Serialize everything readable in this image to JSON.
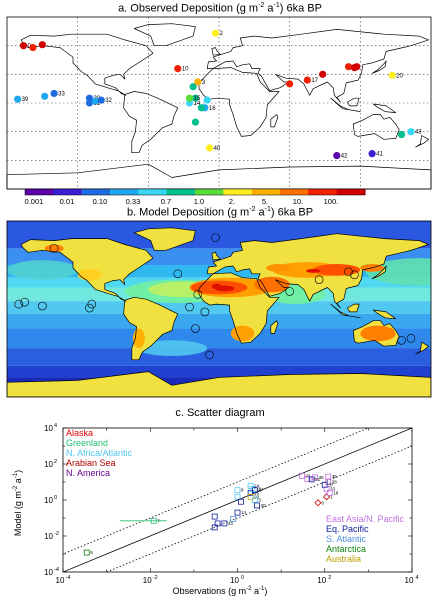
{
  "panel_a": {
    "title_prefix": "a. Observed Deposition (g m",
    "title_exp": "-2",
    "title_mid": " a",
    "title_exp2": "-1",
    "title_suffix": ") 6ka BP",
    "colorbar_labels": [
      "0.001",
      "0.01",
      "0.10",
      "0.33",
      "0.7",
      "1.0",
      "2.",
      "5.",
      "10.",
      "100."
    ],
    "colorbar_colors": [
      "#5a00a8",
      "#3a1fd0",
      "#1e6be0",
      "#1da8f0",
      "#38d8f5",
      "#00c090",
      "#5adc3a",
      "#ffee20",
      "#ffb000",
      "#ff7000",
      "#f02000",
      "#d00000"
    ],
    "site_labels": [
      "0",
      "2",
      "10",
      "20",
      "39",
      "40",
      "41",
      "42",
      "3",
      "14",
      "15",
      "16",
      "17",
      "30",
      "31",
      "32",
      "33",
      "43"
    ]
  },
  "panel_b": {
    "title_prefix": "b. Model Deposition (g m",
    "title_exp": "-2",
    "title_mid": " a",
    "title_exp2": "-1",
    "title_suffix": ") 6ka BP"
  },
  "panel_c": {
    "title": "c. Scatter diagram",
    "ylabel_prefix": "Model (g m",
    "ylabel_exp": "-2",
    "ylabel_mid": " a",
    "ylabel_exp2": "-1",
    "ylabel_suffix": ")",
    "xlabel_prefix": "Observations (g m",
    "xlabel_exp": "-2",
    "xlabel_mid": " a",
    "xlabel_exp2": "-1",
    "xlabel_suffix": ")",
    "legend_left": [
      {
        "label": "Alaska",
        "color": "#e00000"
      },
      {
        "label": "Greenland",
        "color": "#20c070"
      },
      {
        "label": "N. Africa/Atlantic",
        "color": "#50c8f0"
      },
      {
        "label": "Arabian Sea",
        "color": "#b00000"
      },
      {
        "label": "N. America",
        "color": "#6a0090"
      }
    ],
    "legend_right": [
      {
        "label": "East Asia/N. Pacific",
        "color": "#c070e0"
      },
      {
        "label": "Eq. Pacific",
        "color": "#1020a0"
      },
      {
        "label": "S. Atlantic",
        "color": "#5090e0"
      },
      {
        "label": "Antarctica",
        "color": "#108010"
      },
      {
        "label": "Australia",
        "color": "#c0a000"
      }
    ]
  },
  "chart_data": {
    "type": "scatter",
    "title": "c. Scatter diagram",
    "xlabel": "Observations (g m-2 a-1)",
    "ylabel": "Model (g m-2 a-1)",
    "xscale": "log",
    "yscale": "log",
    "xlim": [
      0.0001,
      10000
    ],
    "ylim": [
      0.0001,
      10000
    ],
    "x_ticks": [
      "10-4",
      "10-2",
      "100",
      "102",
      "104"
    ],
    "y_ticks": [
      "10-4",
      "10-2",
      "100",
      "102",
      "104"
    ],
    "lines": [
      "1:1 solid",
      "10x dotted",
      "0.1x dotted"
    ],
    "grid": false,
    "points": [
      {
        "label": "9",
        "x": 0.00035,
        "y": 0.0012,
        "group": "Antarctica"
      },
      {
        "label": "7",
        "x": 0.012,
        "y": 0.07,
        "group": "Greenland"
      },
      {
        "label": "",
        "x": 0.3,
        "y": 0.12,
        "group": "Eq. Pacific"
      },
      {
        "label": "",
        "x": 0.35,
        "y": 0.05,
        "group": "Eq. Pacific"
      },
      {
        "label": "",
        "x": 0.3,
        "y": 0.03,
        "group": "Eq. Pacific"
      },
      {
        "label": "43",
        "x": 0.5,
        "y": 0.05,
        "group": "Eq. Pacific"
      },
      {
        "label": "",
        "x": 0.8,
        "y": 0.09,
        "group": "S. Atlantic"
      },
      {
        "label": "14",
        "x": 1.0,
        "y": 0.2,
        "group": "Eq. Pacific"
      },
      {
        "label": "8",
        "x": 1.0,
        "y": 3.5,
        "group": "N. Africa/Atlantic"
      },
      {
        "label": "",
        "x": 1.0,
        "y": 1.5,
        "group": "N. Africa/Atlantic"
      },
      {
        "label": "",
        "x": 1.2,
        "y": 0.8,
        "group": "Eq. Pacific"
      },
      {
        "label": "25",
        "x": 2.0,
        "y": 2.5,
        "group": "Eq. Pacific"
      },
      {
        "label": "20",
        "x": 2.0,
        "y": 1.5,
        "group": "Australia"
      },
      {
        "label": "16",
        "x": 2.2,
        "y": 4.0,
        "group": "N. Africa/Atlantic"
      },
      {
        "label": "24",
        "x": 2.0,
        "y": 6.0,
        "group": "N. Africa/Atlantic"
      },
      {
        "label": "27",
        "x": 2.5,
        "y": 3.5,
        "group": "Eq. Pacific"
      },
      {
        "label": "3",
        "x": 2.5,
        "y": 1.0,
        "group": "N. Africa/Atlantic"
      },
      {
        "label": "40",
        "x": 2.8,
        "y": 0.5,
        "group": "Eq. Pacific"
      },
      {
        "label": "34",
        "x": 30,
        "y": 22,
        "group": "East Asia/N. Pacific"
      },
      {
        "label": "32",
        "x": 40,
        "y": 15,
        "group": "East Asia/N. Pacific"
      },
      {
        "label": "31",
        "x": 50,
        "y": 14,
        "group": "Eq. Pacific"
      },
      {
        "label": "35",
        "x": 60,
        "y": 18,
        "group": "East Asia/N. Pacific"
      },
      {
        "label": "0",
        "x": 70,
        "y": 0.7,
        "group": "Alaska"
      },
      {
        "label": "1",
        "x": 110,
        "y": 1.5,
        "group": "Arabian Sea"
      },
      {
        "label": "36",
        "x": 120,
        "y": 20,
        "group": "East Asia/N. Pacific"
      },
      {
        "label": "38",
        "x": 120,
        "y": 10,
        "group": "East Asia/N. Pacific"
      },
      {
        "label": "37",
        "x": 100,
        "y": 7,
        "group": "Eq. Pacific"
      },
      {
        "label": "33",
        "x": 110,
        "y": 4,
        "group": "East Asia/N. Pacific"
      },
      {
        "label": "18",
        "x": 130,
        "y": 2.5,
        "group": "East Asia/N. Pacific"
      }
    ]
  }
}
